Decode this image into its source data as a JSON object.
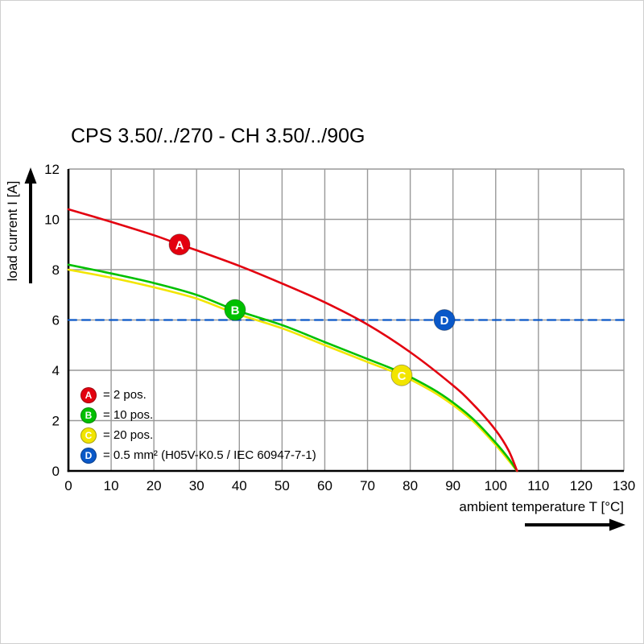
{
  "chart_data": {
    "type": "line",
    "title": "CPS 3.50/../270 - CH 3.50/../90G",
    "xlabel": "ambient temperature T [°C]",
    "ylabel": "load current I [A]",
    "xlim": [
      0,
      130
    ],
    "ylim": [
      0,
      12
    ],
    "x_ticks": [
      0,
      10,
      20,
      30,
      40,
      50,
      60,
      70,
      80,
      90,
      100,
      110,
      120,
      130
    ],
    "y_ticks": [
      0,
      2,
      4,
      6,
      8,
      10,
      12
    ],
    "grid": true,
    "legend_position": "lower-left",
    "colors": {
      "grid": "#999999",
      "axis": "#000000",
      "background": "#ffffff"
    },
    "series": [
      {
        "name": "A",
        "legend_label": "= 2 pos.",
        "color": "#e3000f",
        "line_style": "solid",
        "marker": {
          "x": 26,
          "y": 9.0
        },
        "points": [
          [
            0,
            10.4
          ],
          [
            10,
            9.9
          ],
          [
            20,
            9.37
          ],
          [
            26,
            9.0
          ],
          [
            30,
            8.77
          ],
          [
            40,
            8.15
          ],
          [
            50,
            7.45
          ],
          [
            60,
            6.7
          ],
          [
            70,
            5.82
          ],
          [
            80,
            4.72
          ],
          [
            90,
            3.4
          ],
          [
            95,
            2.6
          ],
          [
            100,
            1.62
          ],
          [
            103,
            0.82
          ],
          [
            105,
            0
          ]
        ]
      },
      {
        "name": "B",
        "legend_label": "= 10 pos.",
        "color": "#00c000",
        "line_style": "solid",
        "marker": {
          "x": 39,
          "y": 6.4
        },
        "points": [
          [
            0,
            8.2
          ],
          [
            10,
            7.85
          ],
          [
            20,
            7.47
          ],
          [
            30,
            7.0
          ],
          [
            39,
            6.4
          ],
          [
            50,
            5.8
          ],
          [
            60,
            5.12
          ],
          [
            70,
            4.45
          ],
          [
            78,
            3.9
          ],
          [
            85,
            3.28
          ],
          [
            90,
            2.72
          ],
          [
            95,
            2.02
          ],
          [
            100,
            1.12
          ],
          [
            103,
            0.5
          ],
          [
            105,
            0
          ]
        ]
      },
      {
        "name": "C",
        "legend_label": "= 20 pos.",
        "color": "#f2e500",
        "line_style": "solid",
        "marker": {
          "x": 78,
          "y": 3.8
        },
        "points": [
          [
            0,
            8.0
          ],
          [
            10,
            7.68
          ],
          [
            20,
            7.3
          ],
          [
            30,
            6.85
          ],
          [
            39,
            6.27
          ],
          [
            50,
            5.67
          ],
          [
            60,
            5.0
          ],
          [
            70,
            4.33
          ],
          [
            78,
            3.8
          ],
          [
            85,
            3.18
          ],
          [
            90,
            2.62
          ],
          [
            95,
            1.93
          ],
          [
            100,
            1.03
          ],
          [
            103,
            0.42
          ],
          [
            105,
            0
          ]
        ]
      },
      {
        "name": "D",
        "legend_label": "= 0.5 mm² (H05V-K0.5 / IEC 60947-7-1)",
        "color": "#0a58c8",
        "line_style": "dashed",
        "marker": {
          "x": 88,
          "y": 6
        },
        "points": [
          [
            0,
            6
          ],
          [
            130,
            6
          ]
        ]
      }
    ]
  }
}
